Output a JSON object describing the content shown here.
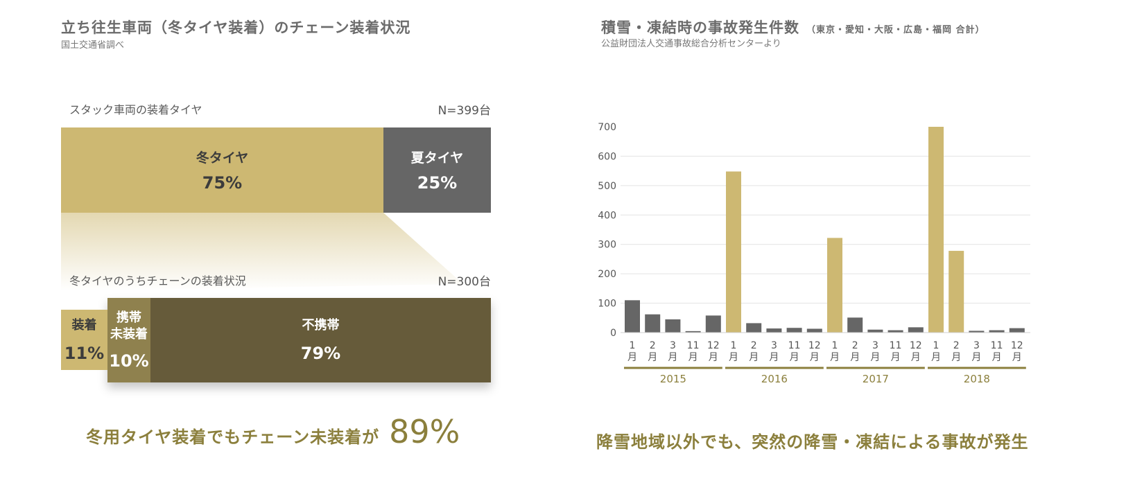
{
  "left": {
    "title": "立ち往生車両（冬タイヤ装着）のチェーン装着状況",
    "subtitle": "国土交通省調べ",
    "section1": {
      "label": "スタック車両の装着タイヤ",
      "n": "N=399台",
      "segments": [
        {
          "label": "冬タイヤ",
          "percent_text": "75%",
          "value": 75,
          "color": "#cdb872"
        },
        {
          "label": "夏タイヤ",
          "percent_text": "25%",
          "value": 25,
          "color": "#666666"
        }
      ]
    },
    "section2": {
      "label": "冬タイヤのうちチェーンの装着状況",
      "n": "N=300台",
      "segments": [
        {
          "label": "装着",
          "percent_text": "11%",
          "value": 11,
          "color": "#cdb872"
        },
        {
          "label_line1": "携帯",
          "label_line2": "未装着",
          "percent_text": "10%",
          "value": 10,
          "color": "#8f814e"
        },
        {
          "label": "不携帯",
          "percent_text": "79%",
          "value": 79,
          "color": "#665b3a"
        }
      ]
    },
    "caption": {
      "text": "冬用タイヤ装着でもチェーン未装着が",
      "value": "89%"
    }
  },
  "right": {
    "title": "積雪・凍結時の事故発生件数",
    "title_note": "（東京・愛知・大阪・広島・福岡 合計）",
    "subtitle": "公益財団法人交通事故総合分析センターより",
    "caption": "降雪地域以外でも、突然の降雪・凍結による事故が発生"
  },
  "chart_data": [
    {
      "type": "bar",
      "title": "立ち往生車両（冬タイヤ装着）のチェーン装着状況",
      "orientation": "horizontal-stacked",
      "series": [
        {
          "name": "スタック車両の装着タイヤ",
          "categories": [
            "冬タイヤ",
            "夏タイヤ"
          ],
          "values": [
            75,
            25
          ],
          "n": "N=399台"
        },
        {
          "name": "冬タイヤのうちチェーンの装着状況",
          "categories": [
            "装着",
            "携帯未装着",
            "不携帯"
          ],
          "values": [
            11,
            10,
            79
          ],
          "n": "N=300台"
        }
      ]
    },
    {
      "type": "bar",
      "title": "積雪・凍結時の事故発生件数",
      "xlabel": "",
      "ylabel": "",
      "ylim": [
        0,
        700
      ],
      "yticks": [
        0,
        100,
        200,
        300,
        400,
        500,
        600,
        700
      ],
      "grid": true,
      "groups": [
        {
          "year": "2015",
          "months": [
            "1",
            "2",
            "3",
            "11",
            "12"
          ],
          "values": [
            110,
            62,
            45,
            5,
            58
          ]
        },
        {
          "year": "2016",
          "months": [
            "1",
            "2",
            "3",
            "11",
            "12"
          ],
          "values": [
            548,
            32,
            14,
            16,
            13
          ]
        },
        {
          "year": "2017",
          "months": [
            "1",
            "2",
            "3",
            "11",
            "12"
          ],
          "values": [
            322,
            51,
            10,
            8,
            18
          ]
        },
        {
          "year": "2018",
          "months": [
            "1",
            "2",
            "3",
            "11",
            "12"
          ],
          "values": [
            700,
            278,
            6,
            8,
            15
          ]
        }
      ],
      "month_suffix": "月",
      "highlight": [
        "2016-1",
        "2017-1",
        "2018-1",
        "2018-2"
      ],
      "colors": {
        "normal": "#666666",
        "highlight": "#cdb872",
        "axis": "#8b7f3c",
        "grid": "#e3e3e3"
      }
    }
  ]
}
